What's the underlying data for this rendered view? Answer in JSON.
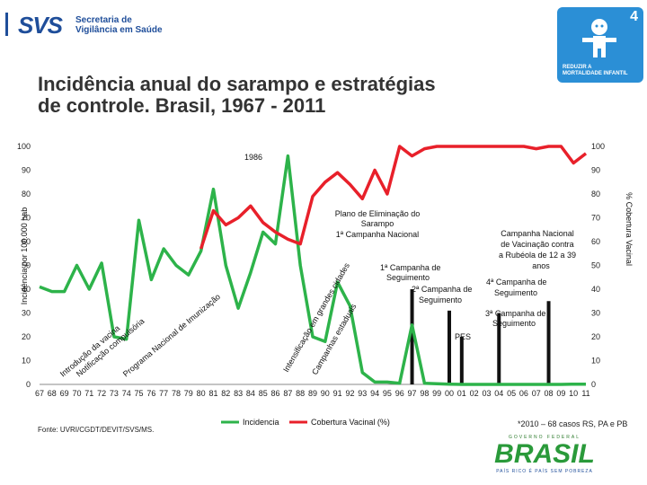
{
  "header": {
    "logo_text": "SVS",
    "org_line1": "Secretaria de",
    "org_line2": "Vigilância em Saúde",
    "goal_number": "4",
    "goal_line1": "REDUZIR A",
    "goal_line2": "MORTALIDADE INFANTIL",
    "colors": {
      "brand_blue": "#1f4e9a",
      "goal_bg": "#2b8fd6"
    }
  },
  "title": {
    "line1": "Incidência anual do sarampo e estratégias",
    "line2": "de controle. Brasil, 1967 - 2011"
  },
  "footer": {
    "source": "Fonte: UVRI/CGDT/DEVIT/SVS/MS.",
    "note": "*2010 – 68 casos RS, PA e PB",
    "brand_word": "BRASIL",
    "brand_tag": "PAÍS RICO É PAÍS SEM POBREZA",
    "brand_top": "GOVERNO FEDERAL"
  },
  "chart_data": {
    "type": "line",
    "ylabel": "Incidência por 100.000 hab",
    "y2label": "% Cobertura Vacinal",
    "ylim": [
      0,
      100
    ],
    "y2lim": [
      0,
      100
    ],
    "yticks": [
      0,
      10,
      20,
      30,
      40,
      50,
      60,
      70,
      80,
      90,
      100
    ],
    "xtick_labels": [
      "67",
      "68",
      "69",
      "70",
      "71",
      "72",
      "73",
      "74",
      "75",
      "76",
      "77",
      "78",
      "79",
      "80",
      "81",
      "82",
      "83",
      "84",
      "85",
      "86",
      "87",
      "88",
      "89",
      "90",
      "91",
      "92",
      "93",
      "94",
      "95",
      "96",
      "97",
      "98",
      "99",
      "00",
      "01",
      "02",
      "03",
      "04",
      "05",
      "06",
      "07",
      "08",
      "09",
      "10",
      "11"
    ],
    "colors": {
      "incidencia": "#2db34a",
      "cobertura": "#e8202a",
      "bars": "#111111"
    },
    "series": [
      {
        "name": "Incidencia",
        "axis": "left",
        "x": [
          1967,
          1968,
          1969,
          1970,
          1971,
          1972,
          1973,
          1974,
          1975,
          1976,
          1977,
          1978,
          1979,
          1980,
          1981,
          1982,
          1983,
          1984,
          1985,
          1986,
          1987,
          1988,
          1989,
          1990,
          1991,
          1992,
          1993,
          1994,
          1995,
          1996,
          1997,
          1998,
          1999,
          2000,
          2001,
          2002,
          2003,
          2004,
          2005,
          2006,
          2007,
          2008,
          2009,
          2010,
          2011
        ],
        "y": [
          41,
          39,
          39,
          50,
          40,
          51,
          20,
          19,
          69,
          44,
          57,
          50,
          46,
          56,
          82,
          50,
          32,
          47,
          64,
          59,
          96,
          50,
          20,
          18,
          43,
          33,
          5,
          1,
          1,
          0.5,
          25,
          0.5,
          0.3,
          0.1,
          0,
          0,
          0,
          0,
          0,
          0,
          0,
          0,
          0,
          0.1,
          0.1
        ]
      },
      {
        "name": "Cobertura Vacinal (%)",
        "axis": "right",
        "x": [
          1980,
          1981,
          1982,
          1983,
          1984,
          1985,
          1986,
          1987,
          1988,
          1989,
          1990,
          1991,
          1992,
          1993,
          1994,
          1995,
          1996,
          1997,
          1998,
          1999,
          2000,
          2001,
          2002,
          2003,
          2004,
          2005,
          2006,
          2007,
          2008,
          2009,
          2010,
          2011
        ],
        "y": [
          57,
          73,
          67,
          70,
          75,
          68,
          64,
          61,
          59,
          79,
          85,
          89,
          84,
          78,
          90,
          80,
          100,
          96,
          99,
          100,
          100,
          100,
          100,
          100,
          100,
          100,
          100,
          99,
          100,
          100,
          93,
          97
        ]
      }
    ],
    "bars": [
      {
        "x": 1997,
        "y": 40
      },
      {
        "x": 2000,
        "y": 31
      },
      {
        "x": 2001,
        "y": 20
      },
      {
        "x": 2004,
        "y": 30
      },
      {
        "x": 2008,
        "y": 35
      }
    ],
    "legend": {
      "placement": "bottom",
      "items": [
        "Incidencia",
        "Cobertura Vacinal (%)"
      ]
    },
    "annotations": {
      "year_1986": "1986",
      "rot_intro": "Introdução da vacina",
      "rot_notif": "Notificação compulsória",
      "rot_programa": "Programa Nacional de Imunização",
      "rot_intensif": "Intensificação em grandes cidades",
      "rot_campanha": "Campanhas estaduais",
      "plano": [
        "Plano de Eliminação do",
        "Sarampo",
        "1ª Campanha Nacional"
      ],
      "seg1": [
        "1ª Campanha de",
        "Seguimento"
      ],
      "seg2": [
        "2ª Campanha de",
        "Seguimento"
      ],
      "seg3": [
        "3ª Campanha de",
        "Seguimento"
      ],
      "seg4": [
        "4ª Campanha de",
        "Seguimento"
      ],
      "rubeola": [
        "Campanha Nacional",
        "de Vacinação contra",
        "a Rubéola de 12 a 39",
        "anos"
      ],
      "pes": "PES"
    }
  }
}
